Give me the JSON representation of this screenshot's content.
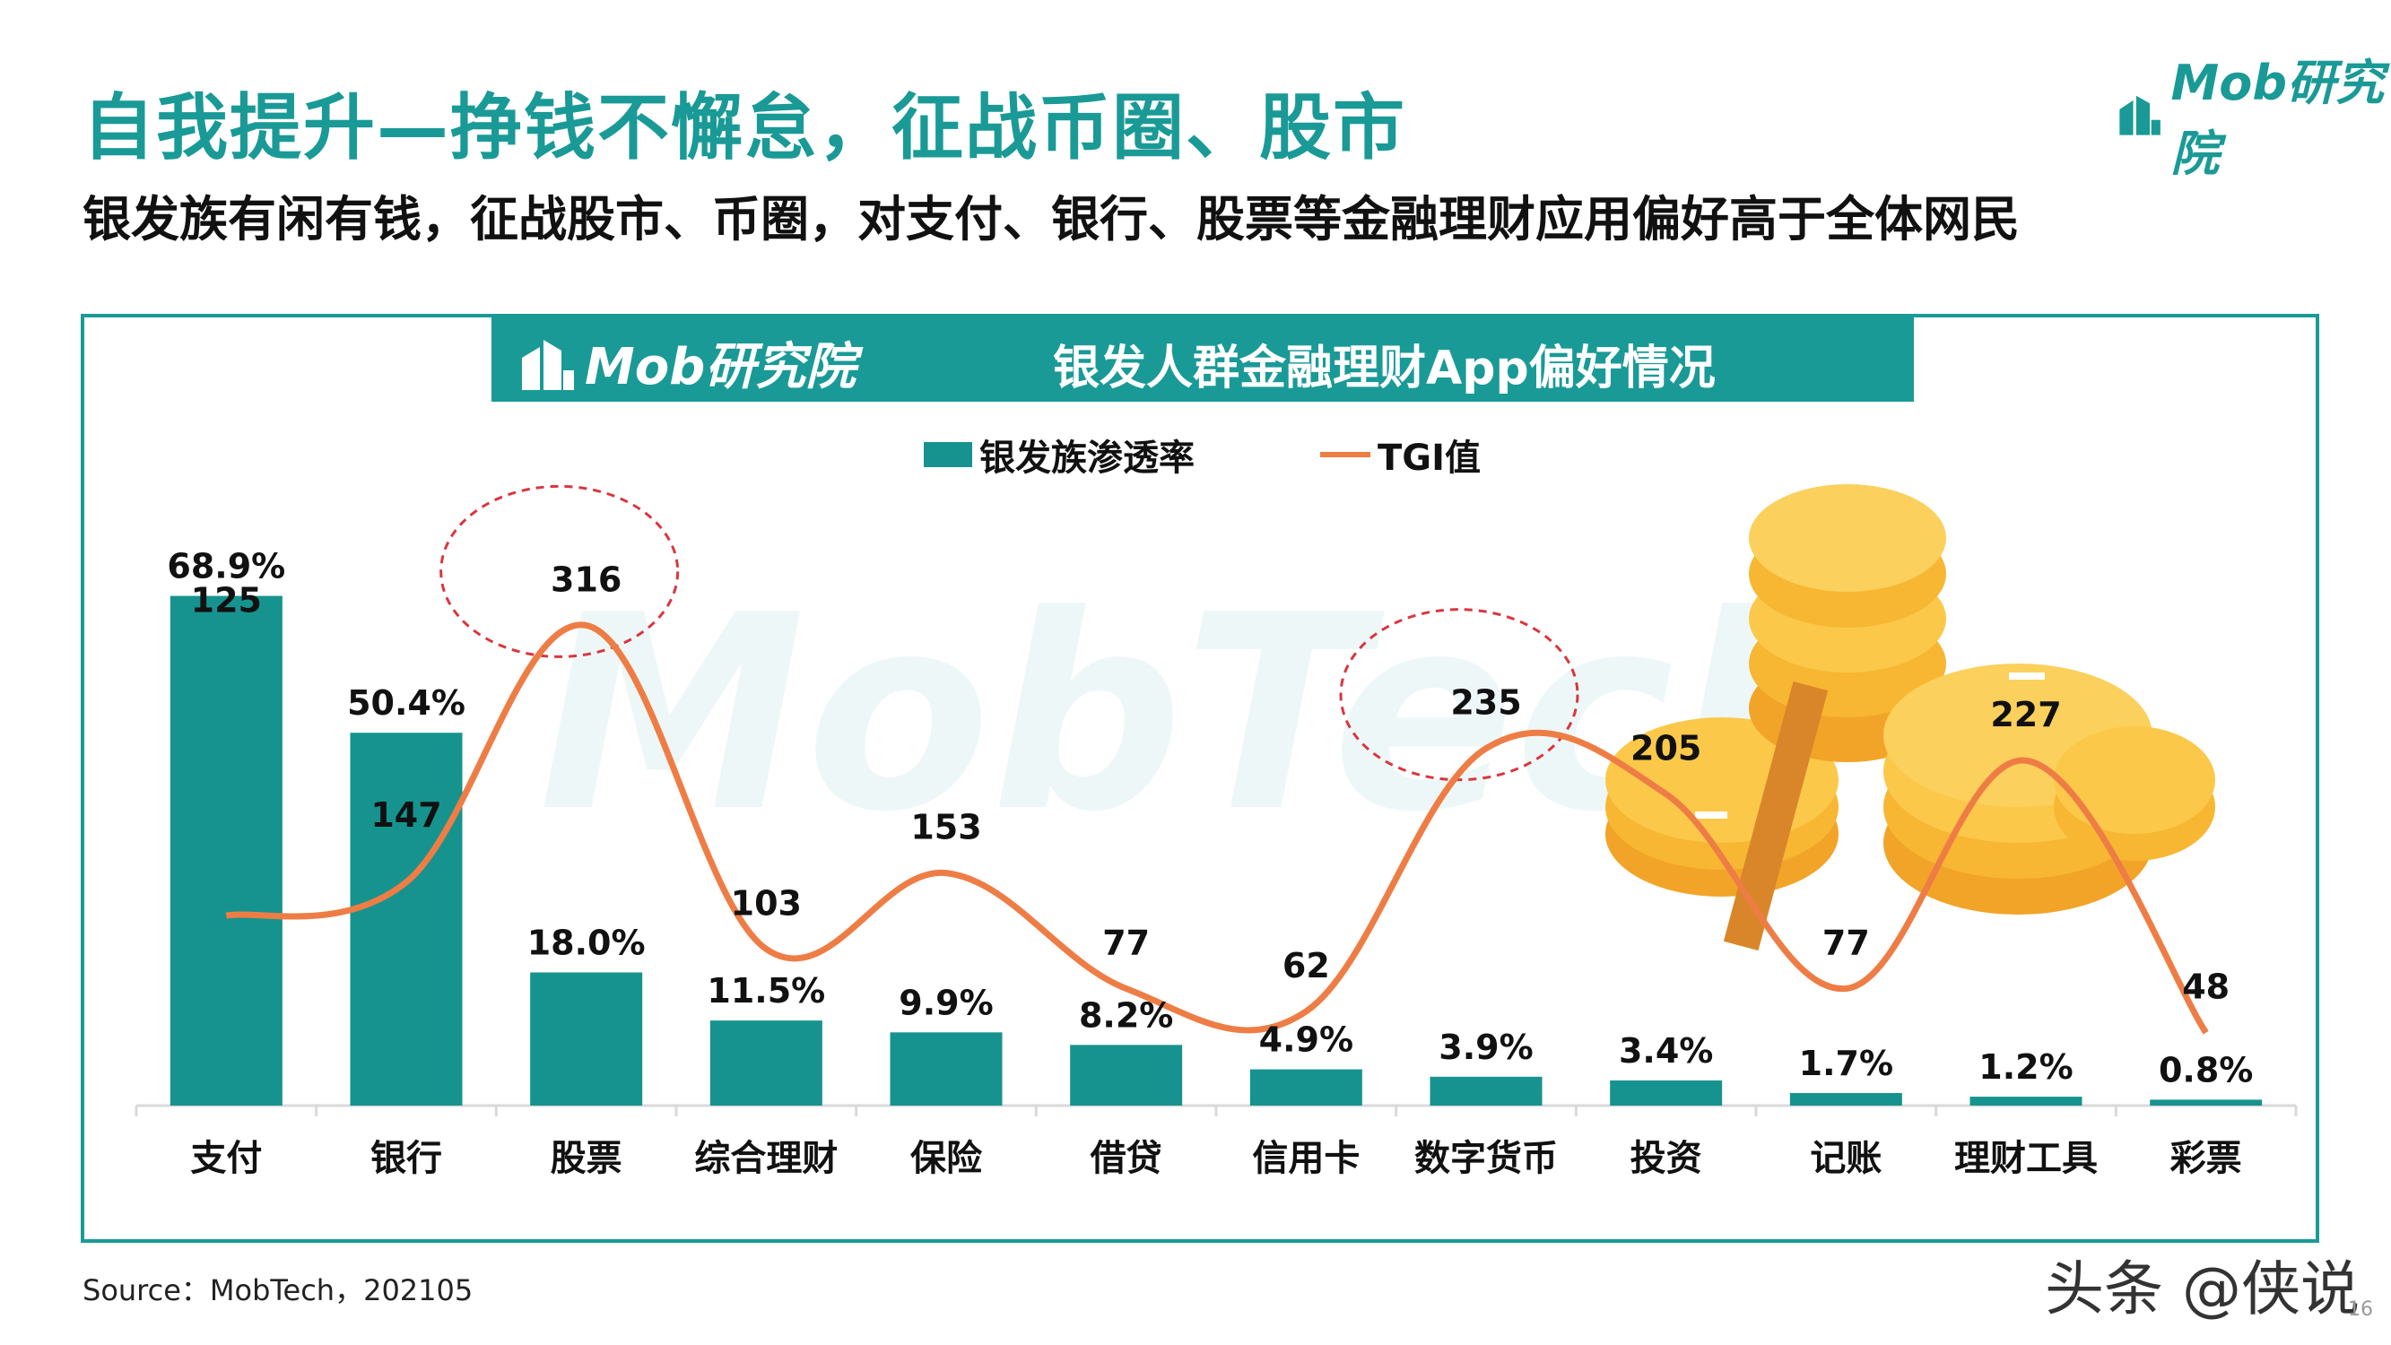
{
  "header": {
    "title": "自我提升—挣钱不懈怠，征战币圈、股市",
    "subtitle": "银发族有闲有钱，征战股市、币圈，对支付、银行、股票等金融理财应用偏好高于全体网民",
    "logo_text": "Mob研究院"
  },
  "banner": {
    "logo_text": "Mob研究院",
    "title": "银发人群金融理财App偏好情况"
  },
  "colors": {
    "brand": "#1a9a96",
    "bar": "#16938f",
    "line": "#ee7d45",
    "highlight_circle": "#d9363e"
  },
  "chart_data": {
    "type": "bar",
    "title": "银发人群金融理财App偏好情况",
    "categories": [
      "支付",
      "银行",
      "股票",
      "综合理财",
      "保险",
      "借贷",
      "信用卡",
      "数字货币",
      "投资",
      "记账",
      "理财工具",
      "彩票"
    ],
    "series": [
      {
        "name": "银发族渗透率",
        "type": "bar",
        "values": [
          68.9,
          50.4,
          18.0,
          11.5,
          9.9,
          8.2,
          4.9,
          3.9,
          3.4,
          1.7,
          1.2,
          0.8
        ],
        "labels": [
          "68.9%",
          "50.4%",
          "18.0%",
          "11.5%",
          "9.9%",
          "8.2%",
          "4.9%",
          "3.9%",
          "3.4%",
          "1.7%",
          "1.2%",
          "0.8%"
        ]
      },
      {
        "name": "TGI值",
        "type": "line",
        "values": [
          125,
          147,
          316,
          103,
          153,
          77,
          62,
          235,
          205,
          77,
          227,
          48
        ],
        "labels": [
          "125",
          "147",
          "316",
          "103",
          "153",
          "77",
          "62",
          "235",
          "205",
          "77",
          "227",
          "48"
        ]
      }
    ],
    "highlighted_categories": [
      "股票",
      "数字货币"
    ],
    "ylim_bar": [
      0,
      80
    ],
    "ylim_line": [
      0,
      400
    ],
    "grid": false,
    "legend_position": "top-center"
  },
  "footer": {
    "source": "Source：MobTech，202105",
    "credit": "头条 @侠说",
    "page": "16"
  }
}
